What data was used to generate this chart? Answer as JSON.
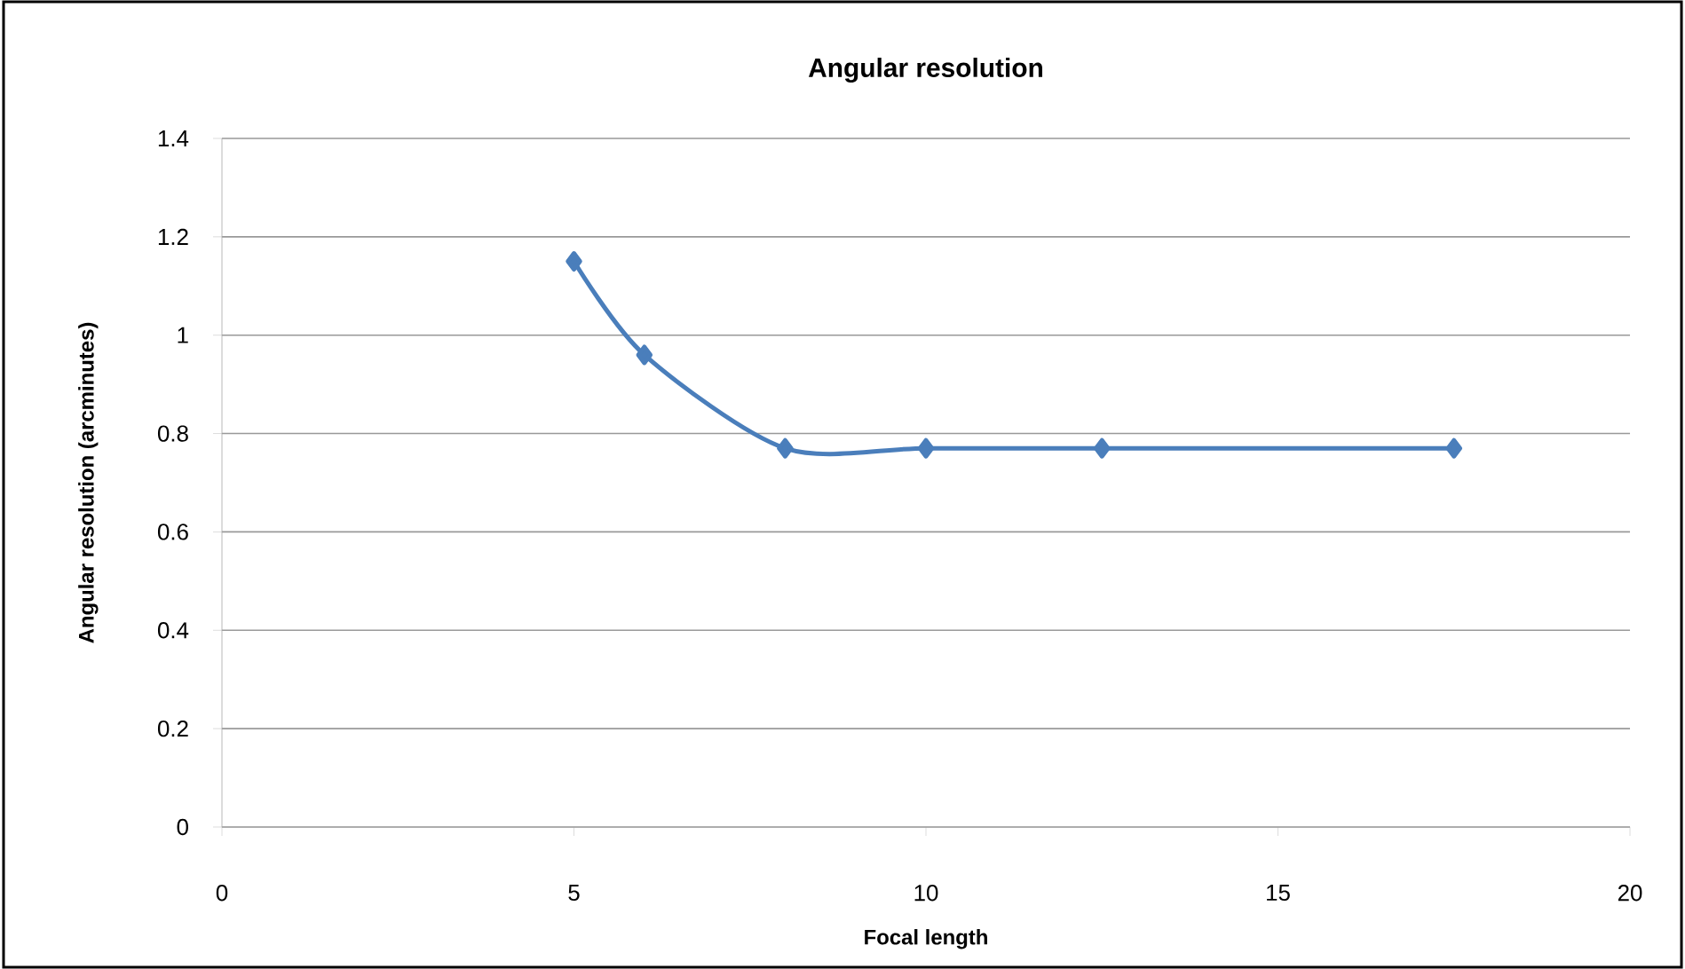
{
  "chart_data": {
    "type": "line",
    "title": "Angular resolution",
    "xlabel": "Focal length",
    "ylabel": "Angular resolution (arcminutes)",
    "x": [
      5,
      6,
      8,
      10,
      12.5,
      17.5
    ],
    "series": [
      {
        "color": "#4a7ebb",
        "values": [
          1.15,
          0.96,
          0.77,
          0.77,
          0.77,
          0.77
        ]
      }
    ],
    "xlim": [
      0,
      20
    ],
    "ylim": [
      0,
      1.4
    ],
    "xticks": [
      0,
      5,
      10,
      15,
      20
    ],
    "yticks": [
      0,
      0.2,
      0.4,
      0.6,
      0.8,
      1,
      1.2,
      1.4
    ],
    "grid": "y",
    "marker": "diamond",
    "line_style": "solid"
  }
}
